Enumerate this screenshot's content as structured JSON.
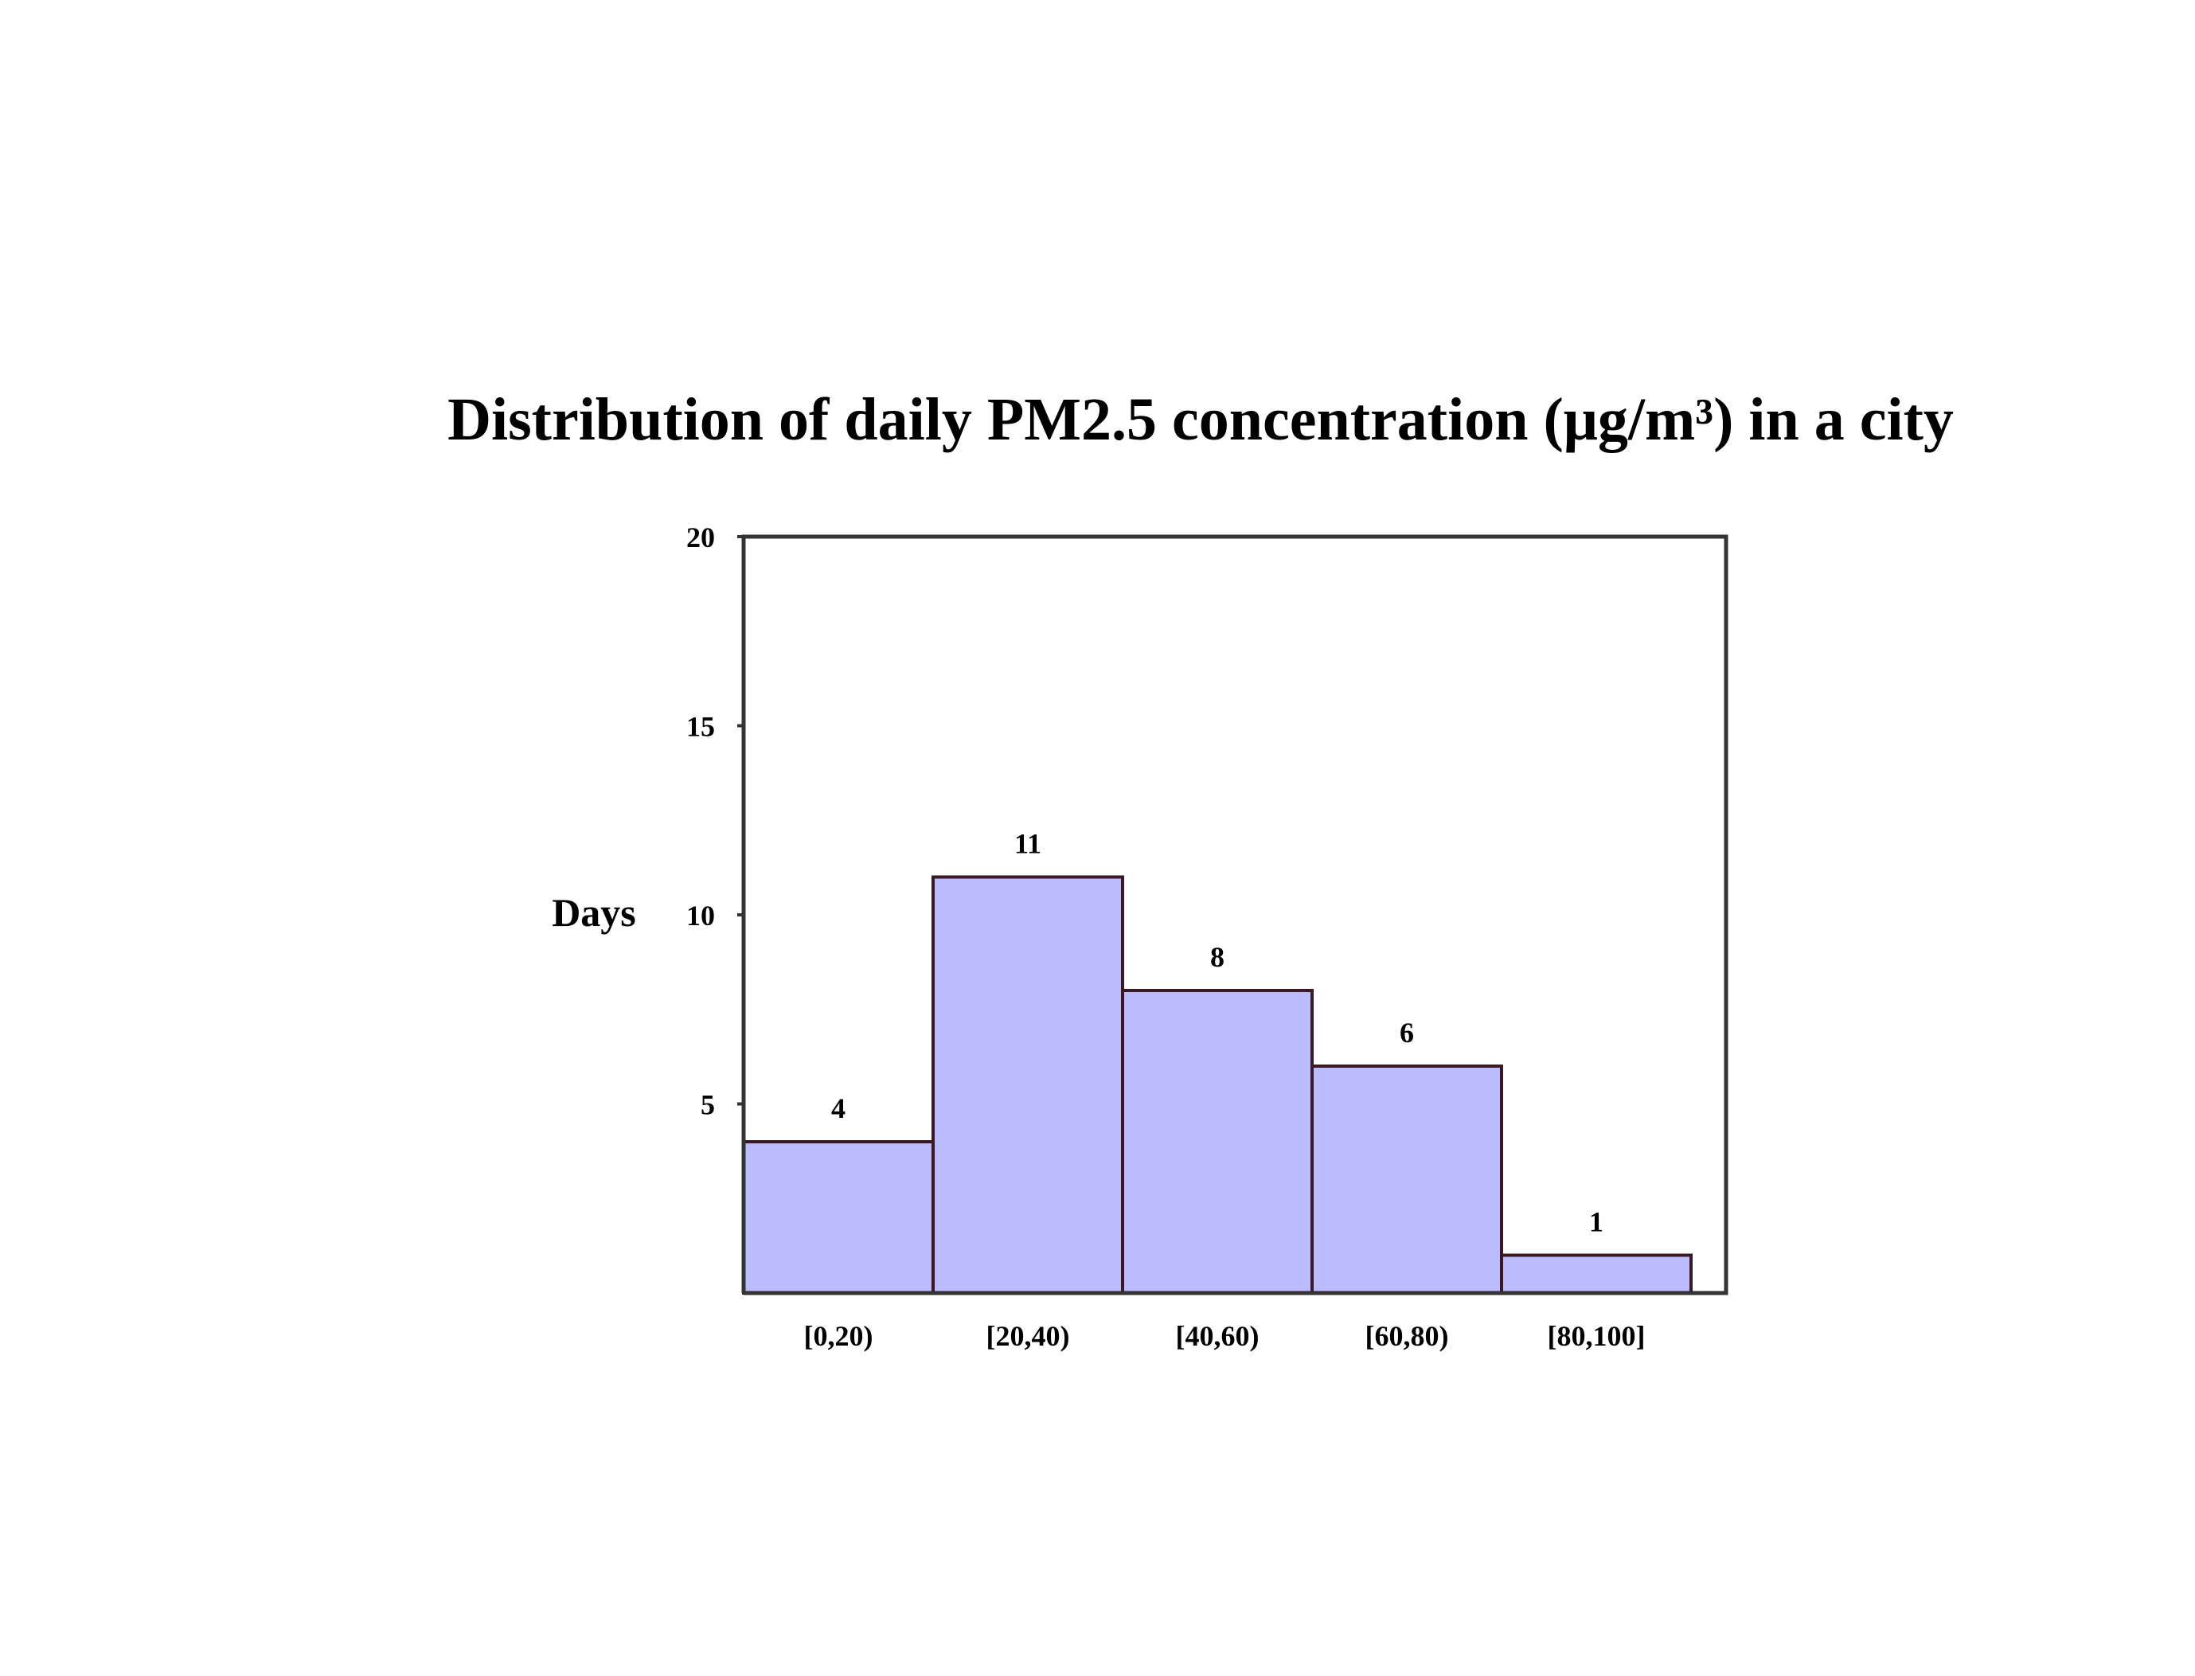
{
  "chart_data": {
    "type": "bar",
    "title": "Distribution of daily PM2.5 concentration (μg/m³) in a city",
    "xlabel": "",
    "ylabel": "Days",
    "categories": [
      "[0,20)",
      "[20,40)",
      "[40,60)",
      "[60,80)",
      "[80,100]"
    ],
    "values": [
      4,
      11,
      8,
      6,
      1
    ],
    "data_labels": [
      "4",
      "11",
      "8",
      "6",
      "1"
    ],
    "ylim": [
      0,
      20
    ],
    "yticks": [
      5,
      10,
      15,
      20
    ],
    "ytick_labels": [
      "5",
      "10",
      "15",
      "20"
    ],
    "grid": false,
    "legend": "none",
    "colors": {
      "bar_fill": "#bbbbff",
      "bar_stroke": "#3a1a22",
      "frame": "#333333"
    }
  }
}
